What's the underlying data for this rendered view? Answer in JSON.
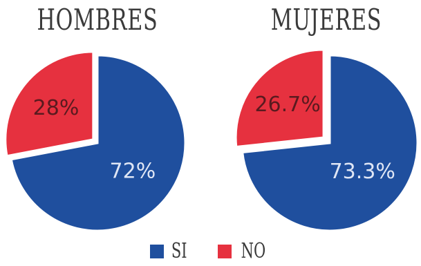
{
  "colors": {
    "si": "#1f4f9e",
    "no": "#e6313f"
  },
  "chart_data": [
    {
      "type": "pie",
      "title": "HOMBRES",
      "categories": [
        "SI",
        "NO"
      ],
      "values": [
        72,
        28
      ],
      "data_labels": [
        "72%",
        "28%"
      ],
      "exploded": "NO"
    },
    {
      "type": "pie",
      "title": "MUJERES",
      "categories": [
        "SI",
        "NO"
      ],
      "values": [
        73.3,
        26.7
      ],
      "data_labels": [
        "73.3%",
        "26.7%"
      ],
      "exploded": "NO"
    }
  ],
  "legend": [
    {
      "label": "SI",
      "color": "#1f4f9e"
    },
    {
      "label": "NO",
      "color": "#e6313f"
    }
  ]
}
